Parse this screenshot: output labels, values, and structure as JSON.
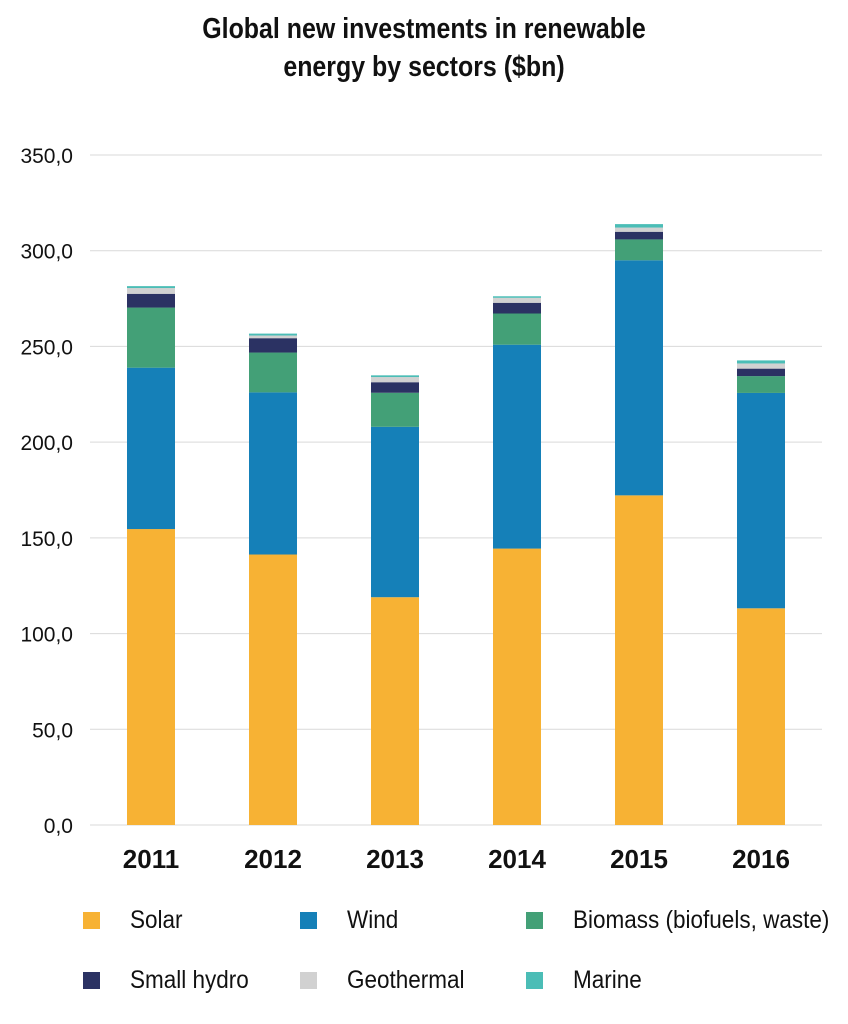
{
  "chart_data": {
    "type": "bar",
    "stacked": true,
    "title_lines": [
      "Global new investments in renewable",
      "energy by sectors ($bn)"
    ],
    "categories": [
      "2011",
      "2012",
      "2013",
      "2014",
      "2015",
      "2016"
    ],
    "series": [
      {
        "name": "Solar",
        "color": "#f7b234",
        "values": [
          154.6,
          141.3,
          119.0,
          144.4,
          172.2,
          113.2
        ]
      },
      {
        "name": "Wind",
        "color": "#1580b8",
        "values": [
          84.3,
          84.7,
          89.0,
          106.5,
          122.8,
          112.5
        ]
      },
      {
        "name": "Biomass (biofuels, waste)",
        "color": "#43a077",
        "values": [
          31.4,
          20.8,
          17.8,
          16.3,
          10.9,
          8.8
        ]
      },
      {
        "name": "Small hydro",
        "color": "#2b3263",
        "values": [
          7.2,
          7.5,
          5.5,
          5.6,
          4.0,
          3.9
        ]
      },
      {
        "name": "Geothermal",
        "color": "#d1d1d1",
        "values": [
          3.0,
          1.4,
          2.7,
          2.6,
          2.2,
          2.7
        ]
      },
      {
        "name": "Marine",
        "color": "#4bbdb6",
        "values": [
          1.0,
          1.0,
          0.9,
          0.8,
          1.8,
          1.6
        ]
      }
    ],
    "y_ticks": [
      "0,0",
      "50,0",
      "100,0",
      "150,0",
      "200,0",
      "250,0",
      "300,0",
      "350,0"
    ],
    "ylim": [
      0,
      350
    ],
    "xlabel": "",
    "ylabel": "",
    "grid": true,
    "legend_placement": "bottom"
  }
}
